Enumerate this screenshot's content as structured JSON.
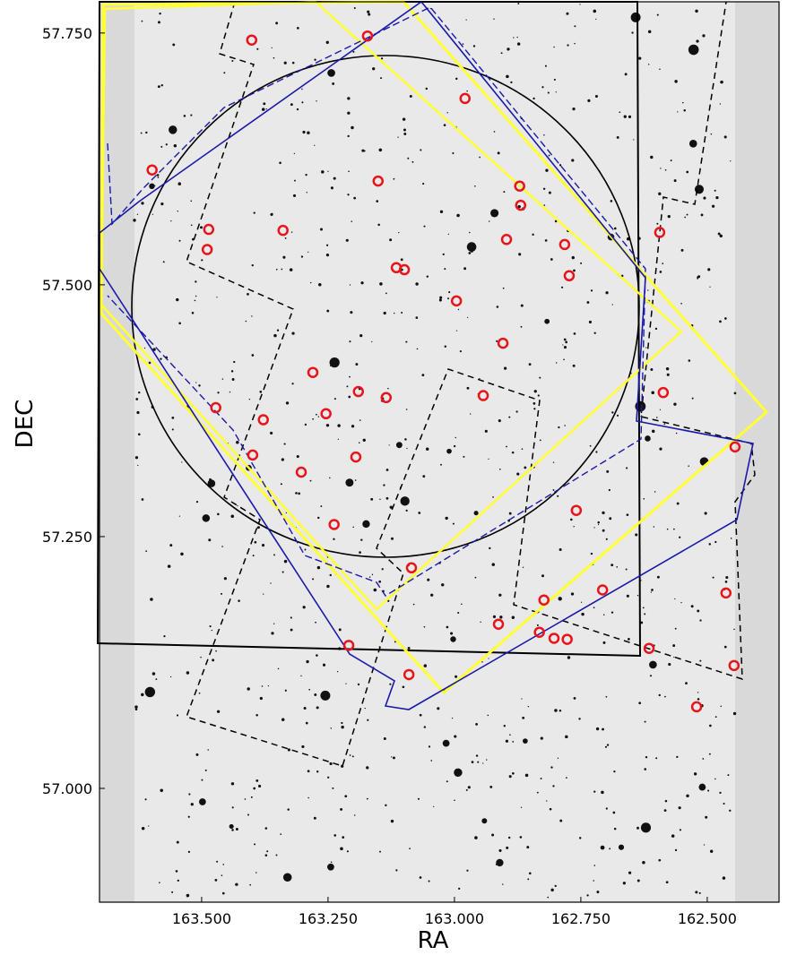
{
  "chart_data": {
    "type": "scatter",
    "xlabel": "RA",
    "ylabel": "DEC",
    "x": [
      163.401,
      163.172,
      162.979,
      163.598,
      163.151,
      162.871,
      162.869,
      163.486,
      163.339,
      163.489,
      162.897,
      162.782,
      162.594,
      163.115,
      163.099,
      162.773,
      162.996,
      162.904,
      163.28,
      162.943,
      163.19,
      163.135,
      162.587,
      163.472,
      163.378,
      163.254,
      163.399,
      163.195,
      163.303,
      162.445,
      162.759,
      163.238,
      163.085,
      162.707,
      162.823,
      162.463,
      162.913,
      162.832,
      162.803,
      162.777,
      163.209,
      162.615,
      163.09,
      162.447,
      162.521
    ],
    "values": [
      57.743,
      57.747,
      57.685,
      57.614,
      57.603,
      57.598,
      57.579,
      57.555,
      57.554,
      57.535,
      57.545,
      57.54,
      57.552,
      57.517,
      57.515,
      57.509,
      57.484,
      57.442,
      57.413,
      57.39,
      57.394,
      57.388,
      57.393,
      57.378,
      57.366,
      57.372,
      57.331,
      57.329,
      57.314,
      57.339,
      57.276,
      57.262,
      57.219,
      57.197,
      57.187,
      57.194,
      57.163,
      57.155,
      57.149,
      57.148,
      57.142,
      57.139,
      57.113,
      57.122,
      57.081
    ],
    "color": "#e8141b",
    "xlim": [
      163.702,
      162.358
    ],
    "ylim": [
      56.887,
      57.781
    ],
    "xticks": [
      {
        "value": 163.5,
        "label": "163.500"
      },
      {
        "value": 163.25,
        "label": "163.250"
      },
      {
        "value": 163.0,
        "label": "163.000"
      },
      {
        "value": 162.75,
        "label": "162.750"
      },
      {
        "value": 162.5,
        "label": "162.500"
      }
    ],
    "yticks": [
      {
        "value": 57.0,
        "label": "57.000"
      },
      {
        "value": 57.25,
        "label": "57.250"
      },
      {
        "value": 57.5,
        "label": "57.500"
      },
      {
        "value": 57.75,
        "label": "57.750"
      }
    ]
  }
}
